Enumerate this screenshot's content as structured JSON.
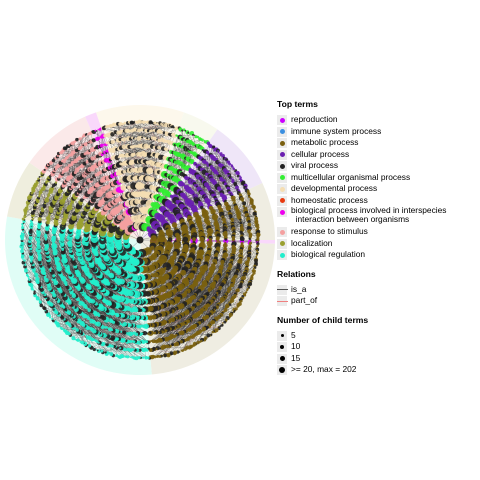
{
  "legend": {
    "top_terms_title": "Top terms",
    "top_terms": [
      {
        "label": "reproduction",
        "color": "#cc00ff"
      },
      {
        "label": "immune system process",
        "color": "#3b8fe0"
      },
      {
        "label": "metabolic process",
        "color": "#7a6010"
      },
      {
        "label": "cellular process",
        "color": "#6a1fb0"
      },
      {
        "label": "viral process",
        "color": "#222222"
      },
      {
        "label": "multicellular organismal process",
        "color": "#33ee33"
      },
      {
        "label": "developmental process",
        "color": "#f5deb3"
      },
      {
        "label": "homeostatic process",
        "color": "#e83a10"
      },
      {
        "label": "biological process involved in interspecies\n  interaction between organisms",
        "color": "#ee00ee"
      },
      {
        "label": "response to stimulus",
        "color": "#f4a0a0"
      },
      {
        "label": "localization",
        "color": "#9aa030"
      },
      {
        "label": "biological regulation",
        "color": "#22eecc"
      }
    ],
    "relations_title": "Relations",
    "relations": [
      {
        "label": "is_a",
        "color": "#555555"
      },
      {
        "label": "part_of",
        "color": "#f08080"
      }
    ],
    "sizes_title": "Number of child terms",
    "sizes": [
      {
        "label": "5",
        "d": 3
      },
      {
        "label": "10",
        "d": 4
      },
      {
        "label": "15",
        "d": 5
      },
      {
        "label": ">= 20, max = 202",
        "d": 6
      }
    ]
  },
  "sectors": [
    {
      "term": "reproduction",
      "start": 0,
      "end": 1.6,
      "bg": "#f9d8fb"
    },
    {
      "term": "metabolic process",
      "start": 1.6,
      "end": 85,
      "bg": "#efede2"
    },
    {
      "term": "biological regulation",
      "start": 85,
      "end": 190,
      "bg": "#e0fdf6"
    },
    {
      "term": "localization",
      "start": 190,
      "end": 215,
      "bg": "#efeede"
    },
    {
      "term": "response to stimulus",
      "start": 215,
      "end": 246,
      "bg": "#fbe9e9"
    },
    {
      "term": "biological process involved in interspecies interaction between organisms",
      "start": 246,
      "end": 251,
      "bg": "#f9d8fb"
    },
    {
      "term": "developmental process",
      "start": 251,
      "end": 289,
      "bg": "#fdf8ec"
    },
    {
      "term": "multicellular organismal process",
      "start": 289,
      "end": 305,
      "bg": "#f8f9ee"
    },
    {
      "term": "cellular process",
      "start": 305,
      "end": 335,
      "bg": "#efe6f8"
    },
    {
      "term": "metabolic process",
      "start": 335,
      "end": 360,
      "bg": "#efede2"
    }
  ]
}
